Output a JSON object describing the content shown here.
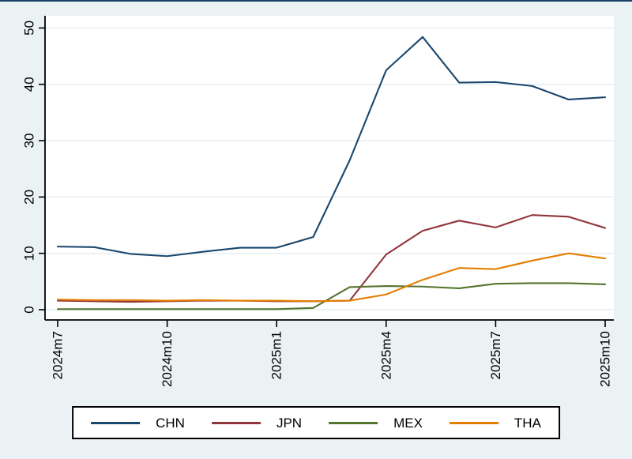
{
  "figure": {
    "background_color": "#eaf2f3",
    "plot_background_color": "#ffffff",
    "gridline_color": "#e4eef1",
    "axis_color": "#000000",
    "top_border_color": "#1a3e66"
  },
  "chart_data": {
    "type": "line",
    "title": "",
    "xlabel": "",
    "ylabel": "",
    "x": [
      "2024m7",
      "2024m8",
      "2024m9",
      "2024m10",
      "2024m11",
      "2024m12",
      "2025m1",
      "2025m2",
      "2025m3",
      "2025m4",
      "2025m5",
      "2025m6",
      "2025m7",
      "2025m8",
      "2025m9",
      "2025m10"
    ],
    "x_tick_labels": [
      "2024m7",
      "2024m10",
      "2025m1",
      "2025m4",
      "2025m7",
      "2025m10"
    ],
    "y_ticks": [
      0,
      10,
      20,
      30,
      40,
      50
    ],
    "ylim": [
      0,
      50
    ],
    "grid": true,
    "tick_label_rotation_deg": -90,
    "legend_position": "bottom",
    "series": [
      {
        "name": "CHN",
        "color": "#1a476f",
        "values": [
          11.2,
          11.1,
          9.9,
          9.5,
          10.3,
          11.0,
          11.0,
          12.9,
          26.5,
          42.5,
          48.4,
          40.3,
          40.4,
          39.7,
          37.3,
          37.7
        ]
      },
      {
        "name": "JPN",
        "color": "#90353b",
        "values": [
          1.6,
          1.5,
          1.4,
          1.5,
          1.6,
          1.6,
          1.5,
          1.5,
          1.6,
          9.8,
          14.0,
          15.8,
          14.6,
          16.8,
          16.5,
          14.5
        ]
      },
      {
        "name": "MEX",
        "color": "#55752f",
        "values": [
          0.1,
          0.1,
          0.1,
          0.1,
          0.1,
          0.1,
          0.1,
          0.3,
          4.0,
          4.2,
          4.1,
          3.8,
          4.6,
          4.7,
          4.7,
          4.5
        ]
      },
      {
        "name": "THA",
        "color": "#e37e00",
        "values": [
          1.8,
          1.7,
          1.7,
          1.6,
          1.7,
          1.6,
          1.6,
          1.5,
          1.6,
          2.7,
          5.3,
          7.4,
          7.2,
          8.7,
          10.0,
          9.1
        ]
      }
    ]
  }
}
